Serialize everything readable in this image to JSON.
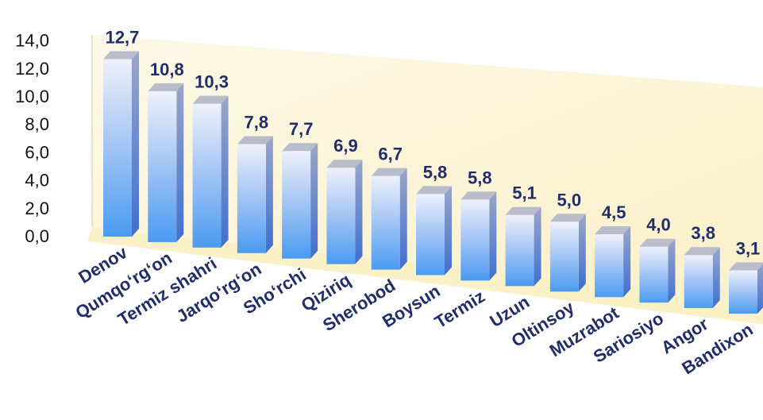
{
  "chart_data": {
    "type": "bar",
    "categories": [
      "Denov",
      "Qumqo‘rg‘on",
      "Termiz shahri",
      "Jarqo‘rg‘on",
      "Sho‘rchi",
      "Qiziriq",
      "Sherobod",
      "Boysun",
      "Termiz",
      "Uzun",
      "Oltinsoy",
      "Muzrabot",
      "Sariosiyo",
      "Angor",
      "Bandixon"
    ],
    "values": [
      12.7,
      10.8,
      10.3,
      7.8,
      7.7,
      6.9,
      6.7,
      5.8,
      5.8,
      5.1,
      5.0,
      4.5,
      4.0,
      3.8,
      3.1
    ],
    "value_labels": [
      "12,7",
      "10,8",
      "10,3",
      "7,8",
      "7,7",
      "6,9",
      "6,7",
      "5,8",
      "5,8",
      "5,1",
      "5,0",
      "4,5",
      "4,0",
      "3,8",
      "3,1"
    ],
    "yticks": [
      "0,0",
      "2,0",
      "4,0",
      "6,0",
      "8,0",
      "10,0",
      "12,0",
      "14,0"
    ],
    "ylim": [
      0,
      14
    ],
    "style": "3d-column",
    "grid": false,
    "legend": "none",
    "colors": {
      "bar_top": "#eef1fb",
      "bar_bottom": "#4a9bf2",
      "bar_side": "#3f6fd0",
      "bar_cap": "#b8bccb",
      "label": "#1f2d6b",
      "back_wall": "#fdf7e0",
      "floor": "#fbf1c6"
    }
  }
}
